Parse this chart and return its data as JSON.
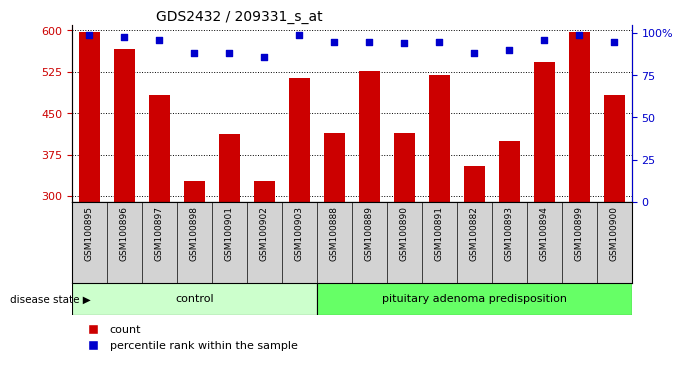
{
  "title": "GDS2432 / 209331_s_at",
  "samples": [
    "GSM100895",
    "GSM100896",
    "GSM100897",
    "GSM100898",
    "GSM100901",
    "GSM100902",
    "GSM100903",
    "GSM100888",
    "GSM100889",
    "GSM100890",
    "GSM100891",
    "GSM100882",
    "GSM100893",
    "GSM100894",
    "GSM100899",
    "GSM100900"
  ],
  "counts": [
    597,
    567,
    483,
    328,
    413,
    328,
    513,
    415,
    527,
    415,
    520,
    355,
    400,
    543,
    597,
    483
  ],
  "percentiles": [
    99,
    98,
    96,
    88,
    88,
    86,
    99,
    95,
    95,
    94,
    95,
    88,
    90,
    96,
    99,
    95
  ],
  "groups": [
    {
      "label": "control",
      "start": 0,
      "end": 7,
      "color": "#ccffcc"
    },
    {
      "label": "pituitary adenoma predisposition",
      "start": 7,
      "end": 16,
      "color": "#66ff66"
    }
  ],
  "bar_color": "#cc0000",
  "dot_color": "#0000cc",
  "ylim_left": [
    290,
    610
  ],
  "yticks_left": [
    300,
    375,
    450,
    525,
    600
  ],
  "ylim_right": [
    0,
    105
  ],
  "yticks_right": [
    0,
    25,
    50,
    75,
    100
  ],
  "background_color": "#ffffff",
  "plot_bg": "#ffffff",
  "tick_label_color_left": "#cc0000",
  "tick_label_color_right": "#0000cc",
  "legend_count_label": "count",
  "legend_percentile_label": "percentile rank within the sample",
  "disease_state_label": "disease state",
  "bar_width": 0.6,
  "sample_label_bg": "#d3d3d3",
  "n_control": 7,
  "n_total": 16
}
